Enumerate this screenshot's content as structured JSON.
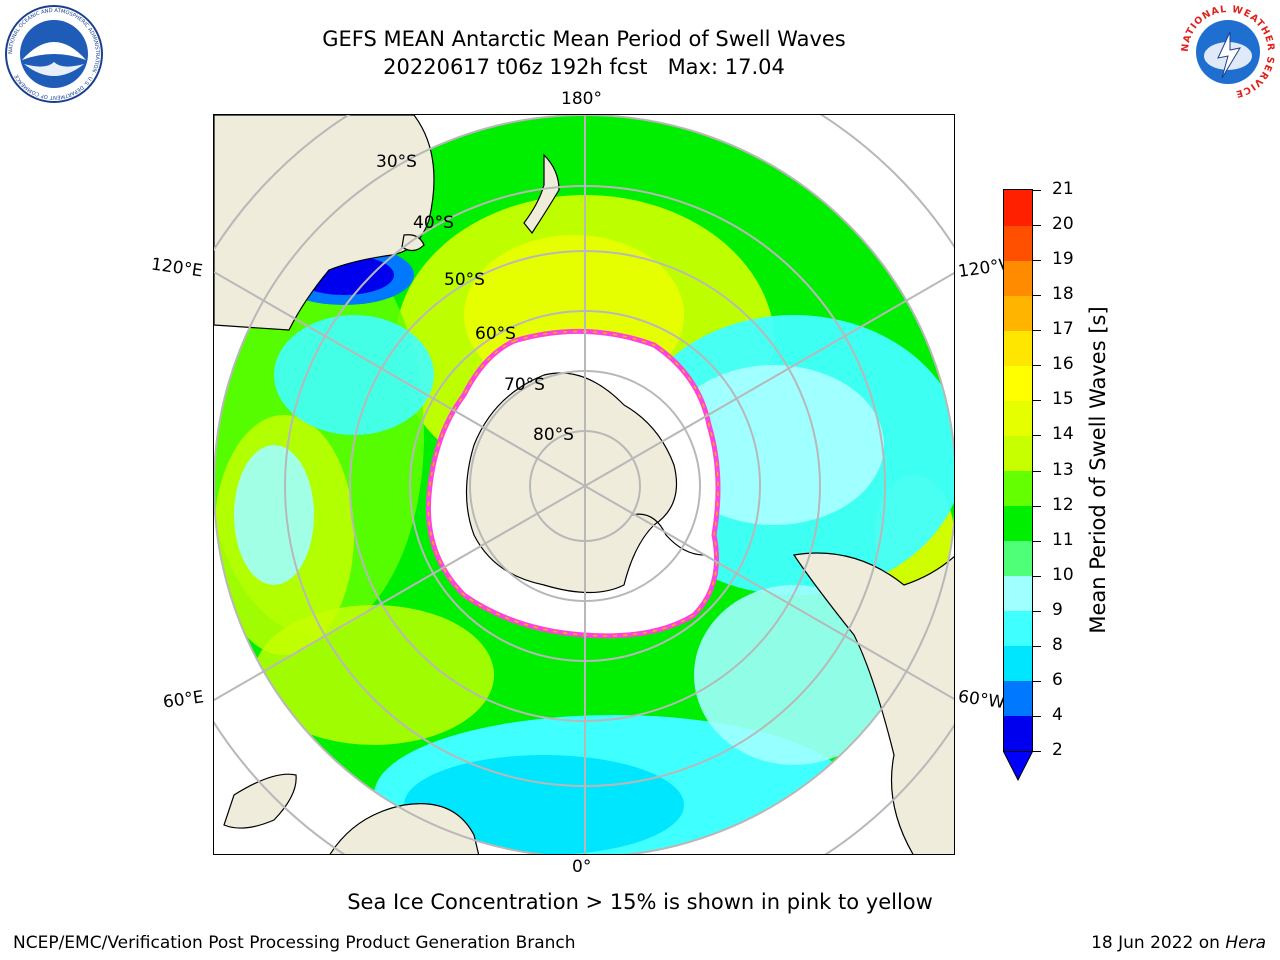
{
  "header": {
    "title_line1": "GEFS MEAN Antarctic Mean Period of Swell Waves",
    "title_line2": "20220617 t06z 192h fcst   Max: 17.04"
  },
  "logos": {
    "left": "NOAA",
    "left_ring_text": "NATIONAL OCEANIC AND ATMOSPHERIC ADMINISTRATION · U.S. DEPARTMENT OF COMMERCE",
    "right_ring_text": "NATIONAL WEATHER SERVICE"
  },
  "map": {
    "projection": "south-polar-stereographic",
    "longitude_labels": {
      "top": "180°",
      "upper_left": "120°E",
      "upper_right": "120°W",
      "lower_left": "60°E",
      "lower_right": "60°W",
      "bottom": "0°"
    },
    "latitude_labels": [
      "30°S",
      "40°S",
      "50°S",
      "60°S",
      "70°S",
      "80°S"
    ],
    "colors": {
      "land": "#efecdc",
      "sea_ice": "#ffffff",
      "ice_edge": "#ff44dd",
      "grid": "#b8b8b8",
      "coast": "#000000"
    }
  },
  "colorbar": {
    "title": "Mean Period of Swell Waves [s]",
    "ticks": [
      "2",
      "4",
      "6",
      "8",
      "9",
      "10",
      "11",
      "12",
      "13",
      "14",
      "15",
      "16",
      "17",
      "18",
      "19",
      "20",
      "21"
    ],
    "colors": [
      "#0000ee",
      "#0078ff",
      "#00e6ff",
      "#40ffff",
      "#a0ffff",
      "#50ff78",
      "#00ee00",
      "#64ff00",
      "#c8ff00",
      "#e6ff00",
      "#ffff00",
      "#ffe600",
      "#ffb400",
      "#ff8c00",
      "#ff5000",
      "#ff2000"
    ],
    "under_color": "#0000ff"
  },
  "footer": {
    "note": "Sea Ice Concentration > 15% is shown in pink to yellow",
    "left": "NCEP/EMC/Verification Post Processing Product Generation Branch",
    "right_date": "18 Jun 2022 on",
    "right_host": "Hera"
  }
}
